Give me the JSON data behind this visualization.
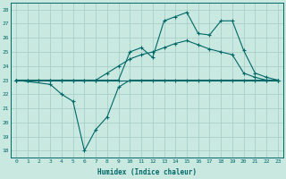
{
  "xlabel": "Humidex (Indice chaleur)",
  "bg_color": "#c8e8e0",
  "grid_color": "#a8d0c8",
  "line_color": "#006868",
  "xlim": [
    -0.5,
    23.5
  ],
  "ylim": [
    17.5,
    28.5
  ],
  "yticks": [
    18,
    19,
    20,
    21,
    22,
    23,
    24,
    25,
    26,
    27,
    28
  ],
  "xticks": [
    0,
    1,
    2,
    3,
    4,
    5,
    6,
    7,
    8,
    9,
    10,
    11,
    12,
    13,
    14,
    15,
    16,
    17,
    18,
    19,
    20,
    21,
    22,
    23
  ],
  "series": {
    "line_flat": {
      "x": [
        0,
        1,
        2,
        3,
        4,
        5,
        6,
        7,
        8,
        9,
        10,
        11,
        12,
        13,
        14,
        15,
        16,
        17,
        18,
        19,
        20,
        21,
        22,
        23
      ],
      "y": [
        23,
        23,
        23,
        23,
        23,
        23,
        23,
        23,
        23,
        23,
        23,
        23,
        23,
        23,
        23,
        23,
        23,
        23,
        23,
        23,
        23,
        23,
        23,
        23
      ],
      "marker": false
    },
    "line_dip": {
      "x": [
        0,
        3,
        4,
        5,
        6,
        7,
        8,
        9,
        10,
        11,
        12,
        13,
        14,
        15,
        16,
        17,
        18,
        19,
        20,
        21,
        22,
        23
      ],
      "y": [
        23,
        22.7,
        22.0,
        21.5,
        18.0,
        19.5,
        20.4,
        22.5,
        23.0,
        23.0,
        23.0,
        23.0,
        23.0,
        23.0,
        23.0,
        23.0,
        23.0,
        23.0,
        23.0,
        23.0,
        23.0,
        23.0
      ],
      "marker": true
    },
    "line_mid": {
      "x": [
        0,
        1,
        2,
        3,
        4,
        5,
        6,
        7,
        8,
        9,
        10,
        11,
        12,
        13,
        14,
        15,
        16,
        17,
        18,
        19,
        20,
        21,
        22,
        23
      ],
      "y": [
        23,
        23,
        23,
        23,
        23,
        23,
        23,
        23,
        23.5,
        24.0,
        24.5,
        24.8,
        25.0,
        25.3,
        25.6,
        25.8,
        25.5,
        25.2,
        25.0,
        24.8,
        23.5,
        23.2,
        23.0,
        23.0
      ],
      "marker": true
    },
    "line_top": {
      "x": [
        0,
        1,
        2,
        3,
        4,
        5,
        6,
        7,
        8,
        9,
        10,
        11,
        12,
        13,
        14,
        15,
        16,
        17,
        18,
        19,
        20,
        21,
        22,
        23
      ],
      "y": [
        23,
        23,
        23,
        23,
        23,
        23,
        23,
        23,
        23,
        23,
        25.0,
        25.3,
        24.6,
        27.2,
        27.5,
        27.8,
        26.3,
        26.2,
        27.2,
        27.2,
        25.1,
        23.5,
        23.2,
        23.0
      ],
      "marker": true
    }
  }
}
